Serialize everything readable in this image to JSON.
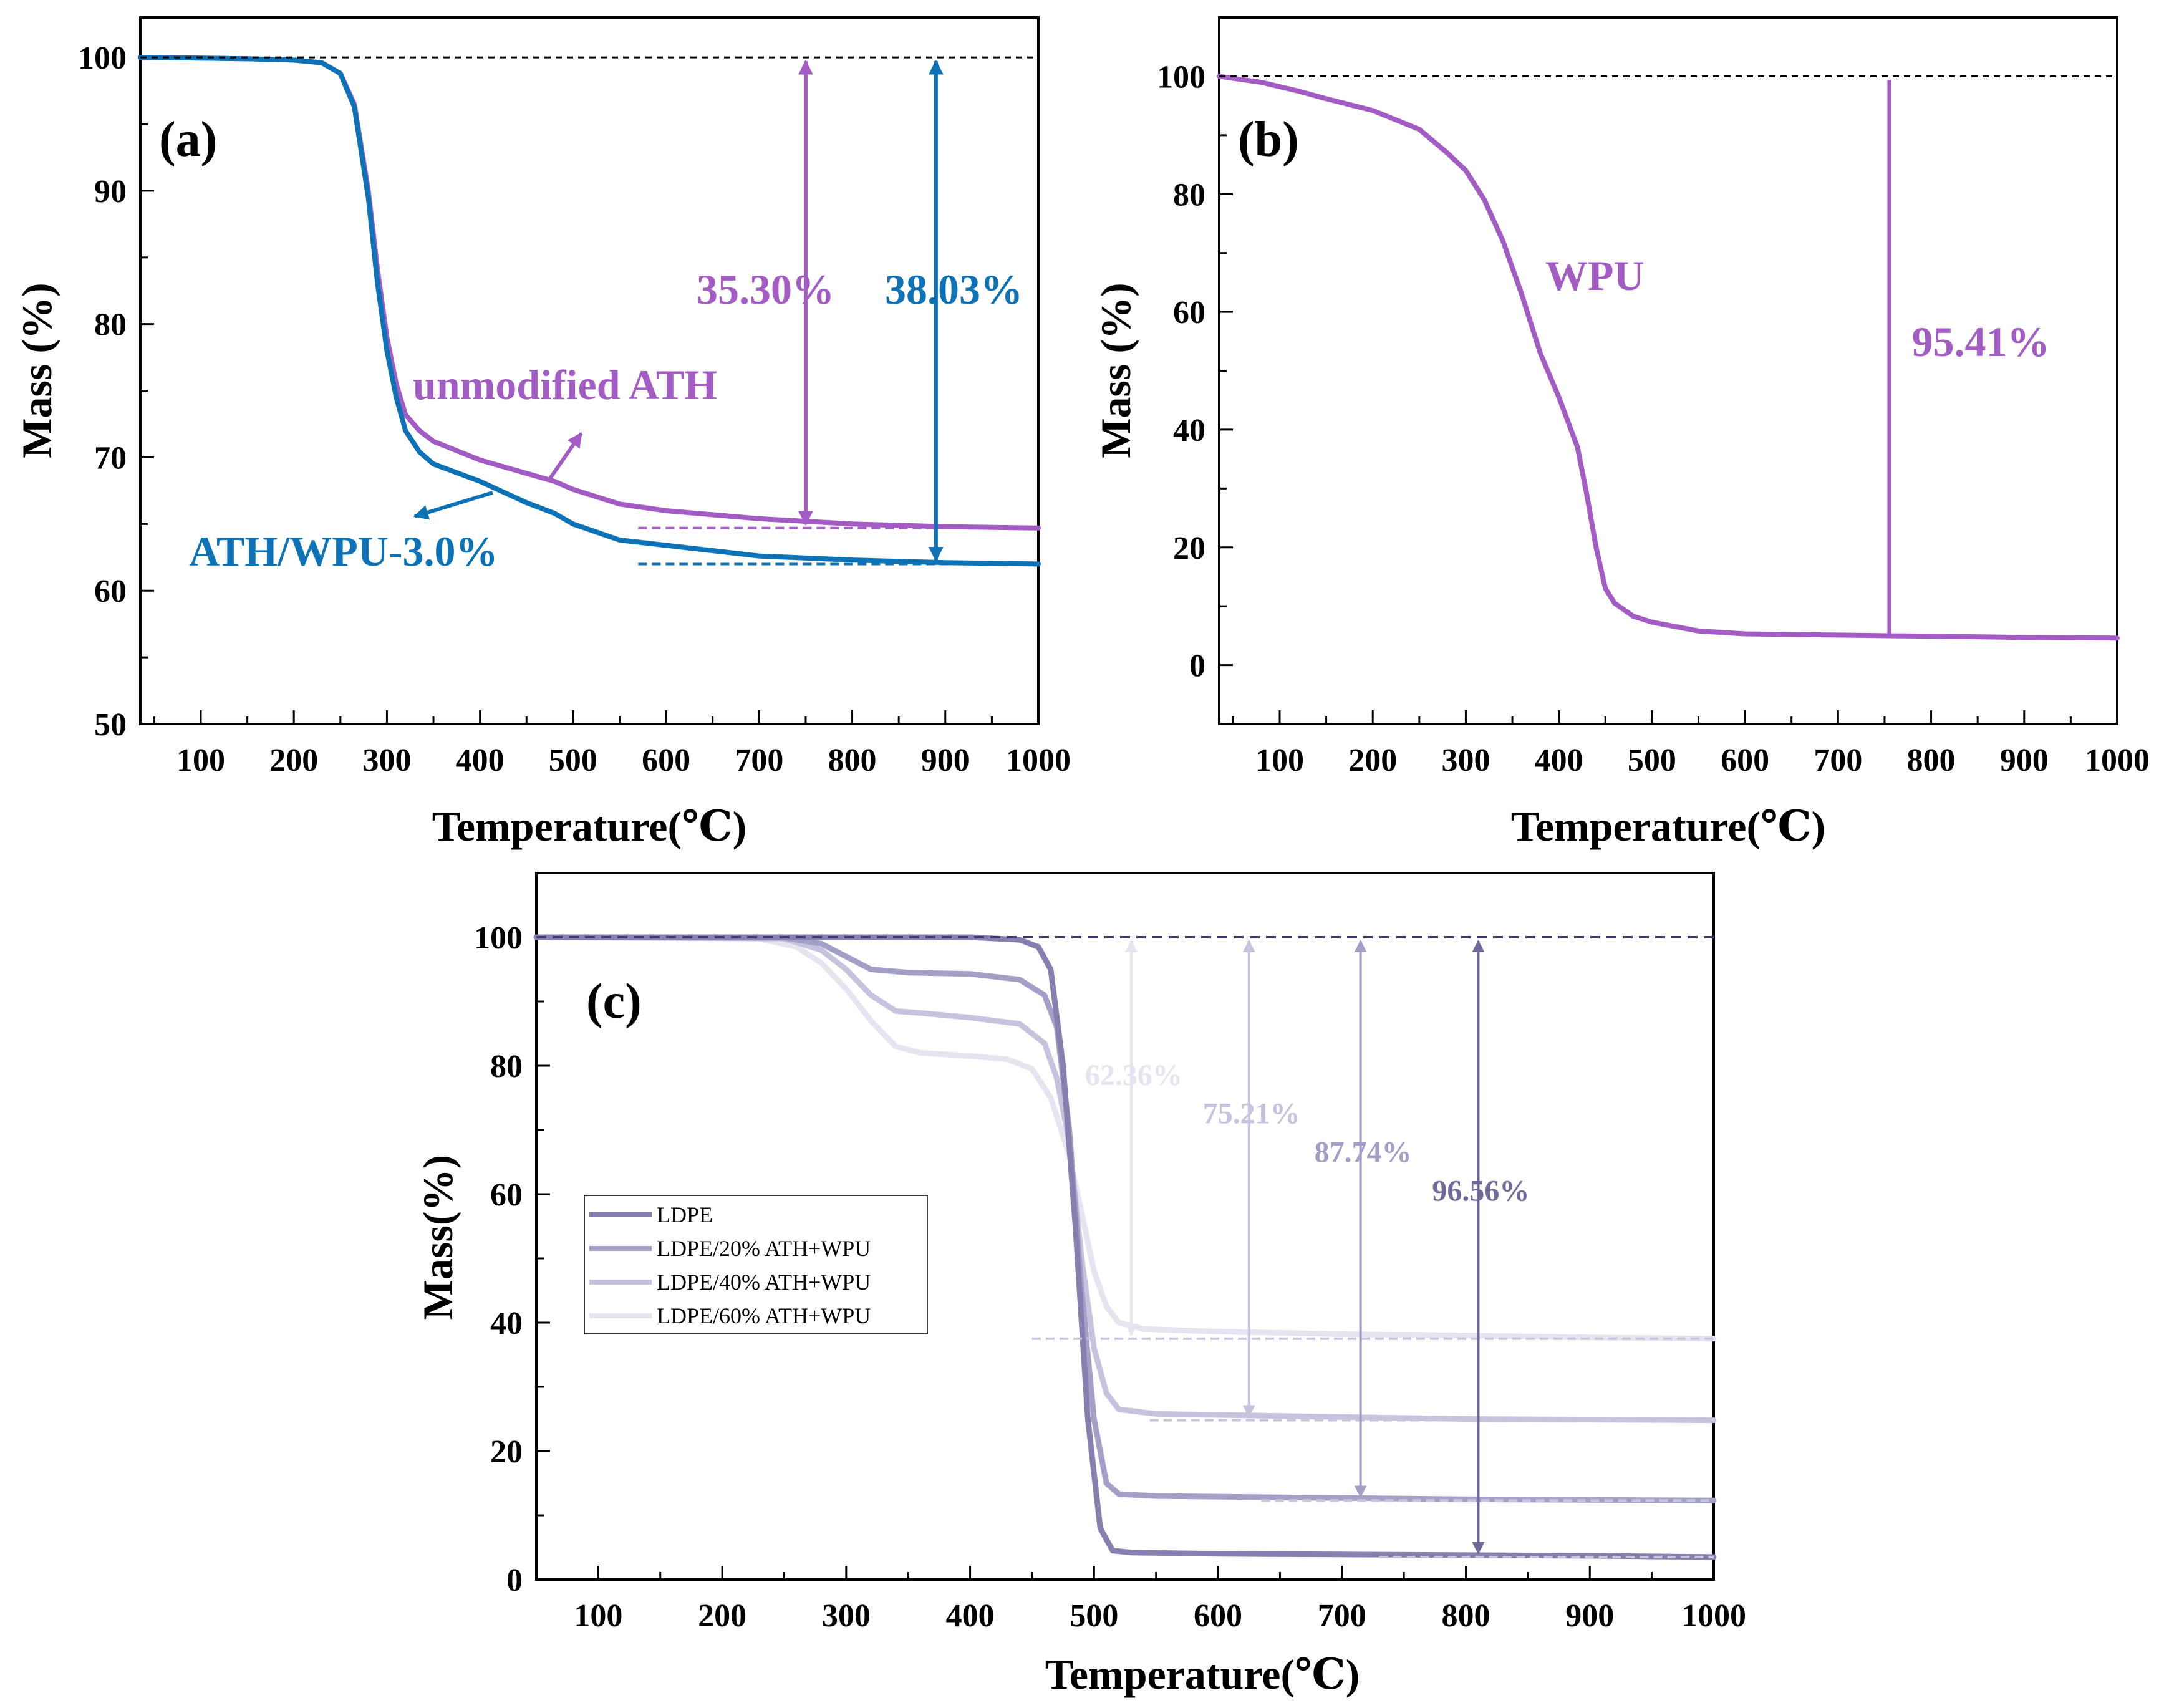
{
  "colors": {
    "purple": "#a25cc4",
    "blue": "#0d72b6",
    "wpu": "#a25cc4",
    "ldpe_dark": "#6f6a99",
    "ldpe_line": "#8580b0",
    "ldpe20": "#a3a0c8",
    "ldpe40": "#c6c3df",
    "ldpe60": "#e5e4f1",
    "ref_dashed": "#3d3a6e"
  },
  "chart_data": [
    {
      "panel": "a",
      "type": "line",
      "panel_label": "(a)",
      "xlabel": "Temperature(℃)",
      "ylabel": "Mass (%)",
      "xlim": [
        35,
        1000
      ],
      "ylim": [
        50,
        103
      ],
      "x_ticks": [
        "100",
        "200",
        "300",
        "400",
        "500",
        "600",
        "700",
        "800",
        "900",
        "1000"
      ],
      "y_ticks": [
        "50",
        "60",
        "70",
        "80",
        "90",
        "100"
      ],
      "series": [
        {
          "name": "unmodified ATH",
          "color": "purple",
          "points": [
            [
              35,
              100
            ],
            [
              100,
              99.95
            ],
            [
              150,
              99.9
            ],
            [
              200,
              99.8
            ],
            [
              230,
              99.6
            ],
            [
              250,
              98.8
            ],
            [
              265,
              96.5
            ],
            [
              280,
              90
            ],
            [
              290,
              84
            ],
            [
              300,
              79
            ],
            [
              310,
              75.5
            ],
            [
              320,
              73.2
            ],
            [
              335,
              72
            ],
            [
              350,
              71.2
            ],
            [
              400,
              69.8
            ],
            [
              450,
              68.8
            ],
            [
              480,
              68.2
            ],
            [
              500,
              67.6
            ],
            [
              550,
              66.5
            ],
            [
              600,
              66.0
            ],
            [
              700,
              65.4
            ],
            [
              800,
              65.0
            ],
            [
              900,
              64.8
            ],
            [
              1000,
              64.7
            ]
          ]
        },
        {
          "name": "ATH/WPU-3.0%",
          "color": "blue",
          "points": [
            [
              35,
              100
            ],
            [
              100,
              99.95
            ],
            [
              150,
              99.9
            ],
            [
              200,
              99.8
            ],
            [
              230,
              99.6
            ],
            [
              250,
              98.8
            ],
            [
              265,
              96.3
            ],
            [
              280,
              89.5
            ],
            [
              290,
              83
            ],
            [
              300,
              78
            ],
            [
              310,
              74.5
            ],
            [
              320,
              72
            ],
            [
              335,
              70.4
            ],
            [
              350,
              69.5
            ],
            [
              400,
              68.2
            ],
            [
              450,
              66.6
            ],
            [
              480,
              65.8
            ],
            [
              500,
              65.0
            ],
            [
              550,
              63.8
            ],
            [
              600,
              63.4
            ],
            [
              700,
              62.6
            ],
            [
              800,
              62.3
            ],
            [
              900,
              62.1
            ],
            [
              1000,
              62.0
            ]
          ]
        }
      ],
      "annotations": [
        {
          "text": "35.30%",
          "color": "purple",
          "x": 750,
          "from": 100,
          "to": 64.7
        },
        {
          "text": "38.03%",
          "color": "blue",
          "x": 890,
          "from": 100,
          "to": 62.0
        },
        {
          "text": "unmodified ATH",
          "color": "purple"
        },
        {
          "text": "ATH/WPU-3.0%",
          "color": "blue"
        }
      ]
    },
    {
      "panel": "b",
      "type": "line",
      "panel_label": "(b)",
      "xlabel": "Temperature(℃)",
      "ylabel": "Mass (%)",
      "xlim": [
        35,
        1000
      ],
      "ylim": [
        -10,
        110
      ],
      "x_ticks": [
        "100",
        "200",
        "300",
        "400",
        "500",
        "600",
        "700",
        "800",
        "900",
        "1000"
      ],
      "y_ticks": [
        "0",
        "20",
        "40",
        "60",
        "80",
        "100"
      ],
      "series": [
        {
          "name": "WPU",
          "color": "wpu",
          "points": [
            [
              35,
              100
            ],
            [
              80,
              99
            ],
            [
              120,
              97.5
            ],
            [
              150,
              96.2
            ],
            [
              200,
              94.2
            ],
            [
              250,
              91
            ],
            [
              280,
              87
            ],
            [
              300,
              84
            ],
            [
              320,
              79
            ],
            [
              340,
              72
            ],
            [
              360,
              63
            ],
            [
              380,
              53
            ],
            [
              400,
              45.5
            ],
            [
              420,
              37
            ],
            [
              430,
              29
            ],
            [
              440,
              20
            ],
            [
              450,
              13
            ],
            [
              460,
              10.5
            ],
            [
              480,
              8.3
            ],
            [
              500,
              7.3
            ],
            [
              550,
              5.8
            ],
            [
              600,
              5.3
            ],
            [
              700,
              5.1
            ],
            [
              800,
              4.9
            ],
            [
              900,
              4.7
            ],
            [
              1000,
              4.6
            ]
          ]
        }
      ],
      "annotations": [
        {
          "text": "95.41%",
          "color": "wpu",
          "x": 755,
          "from": 100,
          "to": 4.6
        },
        {
          "text": "WPU",
          "color": "wpu"
        }
      ]
    },
    {
      "panel": "c",
      "type": "line",
      "panel_label": "(c)",
      "xlabel": "Temperature(℃)",
      "ylabel": "Mass(%)",
      "xlim": [
        50,
        1000
      ],
      "ylim": [
        0,
        110
      ],
      "x_ticks": [
        "100",
        "200",
        "300",
        "400",
        "500",
        "600",
        "700",
        "800",
        "900",
        "1000"
      ],
      "y_ticks": [
        "0",
        "20",
        "40",
        "60",
        "80",
        "100"
      ],
      "legend": [
        "LDPE",
        "LDPE/20% ATH+WPU",
        "LDPE/40% ATH+WPU",
        "LDPE/60% ATH+WPU"
      ],
      "series": [
        {
          "name": "LDPE",
          "color": "ldpe_line",
          "points": [
            [
              50,
              100
            ],
            [
              300,
              100
            ],
            [
              400,
              100
            ],
            [
              440,
              99.6
            ],
            [
              455,
              98.5
            ],
            [
              465,
              95
            ],
            [
              475,
              80
            ],
            [
              485,
              55
            ],
            [
              495,
              25
            ],
            [
              505,
              8
            ],
            [
              515,
              4.5
            ],
            [
              530,
              4.2
            ],
            [
              600,
              4
            ],
            [
              700,
              3.9
            ],
            [
              800,
              3.8
            ],
            [
              900,
              3.7
            ],
            [
              1000,
              3.5
            ]
          ]
        },
        {
          "name": "LDPE/20% ATH+WPU",
          "color": "ldpe20",
          "points": [
            [
              50,
              100
            ],
            [
              250,
              99.9
            ],
            [
              280,
              99
            ],
            [
              300,
              97
            ],
            [
              320,
              95
            ],
            [
              350,
              94.5
            ],
            [
              400,
              94.3
            ],
            [
              440,
              93.4
            ],
            [
              460,
              91
            ],
            [
              470,
              86
            ],
            [
              480,
              70
            ],
            [
              490,
              45
            ],
            [
              500,
              25
            ],
            [
              510,
              15
            ],
            [
              520,
              13.3
            ],
            [
              550,
              13
            ],
            [
              700,
              12.7
            ],
            [
              800,
              12.5
            ],
            [
              900,
              12.4
            ],
            [
              1000,
              12.3
            ]
          ]
        },
        {
          "name": "LDPE/40% ATH+WPU",
          "color": "ldpe40",
          "points": [
            [
              50,
              100
            ],
            [
              250,
              99.8
            ],
            [
              280,
              98
            ],
            [
              300,
              95
            ],
            [
              320,
              91
            ],
            [
              340,
              88.5
            ],
            [
              360,
              88.2
            ],
            [
              400,
              87.5
            ],
            [
              440,
              86.5
            ],
            [
              460,
              83.5
            ],
            [
              470,
              78
            ],
            [
              480,
              68
            ],
            [
              490,
              50
            ],
            [
              500,
              36
            ],
            [
              510,
              29
            ],
            [
              520,
              26.5
            ],
            [
              550,
              25.8
            ],
            [
              700,
              25.3
            ],
            [
              800,
              25.0
            ],
            [
              900,
              24.9
            ],
            [
              1000,
              24.8
            ]
          ]
        },
        {
          "name": "LDPE/60% ATH+WPU",
          "color": "ldpe60",
          "points": [
            [
              50,
              100
            ],
            [
              230,
              99.8
            ],
            [
              260,
              98.5
            ],
            [
              280,
              96
            ],
            [
              300,
              92
            ],
            [
              320,
              87
            ],
            [
              340,
              83
            ],
            [
              360,
              82
            ],
            [
              400,
              81.5
            ],
            [
              430,
              81
            ],
            [
              450,
              79.5
            ],
            [
              465,
              75
            ],
            [
              480,
              66
            ],
            [
              490,
              57
            ],
            [
              500,
              48
            ],
            [
              510,
              42.5
            ],
            [
              520,
              40
            ],
            [
              540,
              39
            ],
            [
              600,
              38.6
            ],
            [
              700,
              38.2
            ],
            [
              800,
              38
            ],
            [
              900,
              37.7
            ],
            [
              1000,
              37.5
            ]
          ]
        }
      ],
      "annotations": [
        {
          "text": "62.36%",
          "color": "ldpe60",
          "x": 530,
          "from": 100,
          "to": 37.5
        },
        {
          "text": "75.21%",
          "color": "ldpe40",
          "x": 625,
          "from": 100,
          "to": 24.8
        },
        {
          "text": "87.74%",
          "color": "ldpe20",
          "x": 715,
          "from": 100,
          "to": 12.3
        },
        {
          "text": "96.56%",
          "color": "ldpe_dark",
          "x": 810,
          "from": 100,
          "to": 3.5
        }
      ]
    }
  ]
}
